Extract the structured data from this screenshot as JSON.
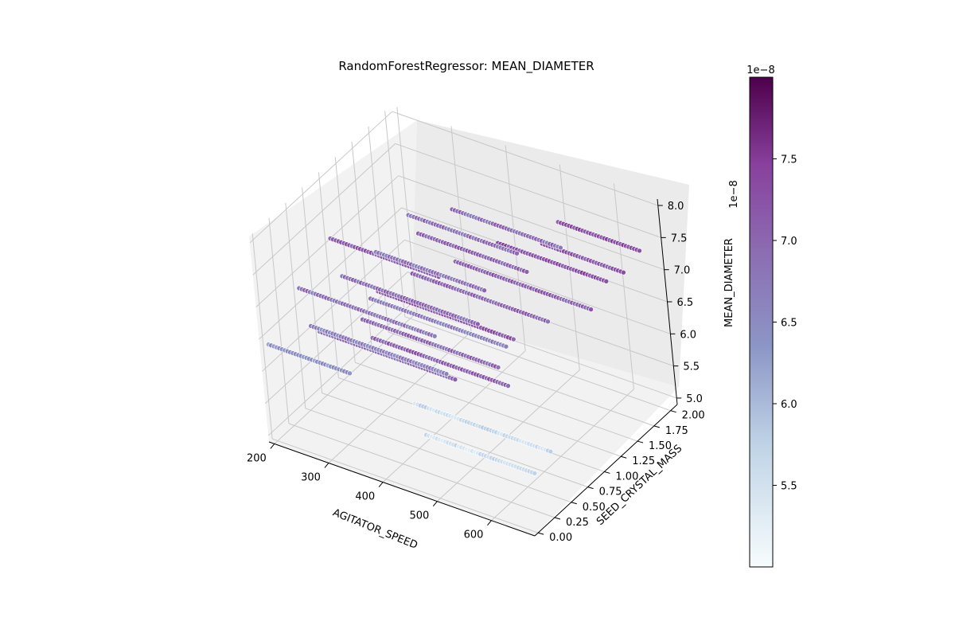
{
  "chart_data": {
    "type": "scatter",
    "projection": "3d",
    "title": "RandomForestRegressor: MEAN_DIAMETER",
    "xlabel": "AGITATOR_SPEED",
    "ylabel": "SEED_CRYSTAL_MASS",
    "zlabel": "MEAN_DIAMETER",
    "z_scale_label": "1e−8",
    "xlim": [
      190,
      680
    ],
    "ylim": [
      -0.05,
      2.1
    ],
    "zlim": [
      4.9,
      8.1
    ],
    "x_ticks": [
      "200",
      "300",
      "400",
      "500",
      "600"
    ],
    "y_ticks": [
      "0.00",
      "0.25",
      "0.50",
      "0.75",
      "1.00",
      "1.25",
      "1.50",
      "1.75",
      "2.00"
    ],
    "z_ticks": [
      "5.0",
      "5.5",
      "6.0",
      "6.5",
      "7.0",
      "7.5",
      "8.0"
    ],
    "grid": true,
    "colormap": "BuPu",
    "colorbar": {
      "label_scale": "1e−8",
      "range": [
        5.0,
        8.0
      ],
      "ticks": [
        "5.5",
        "6.0",
        "6.5",
        "7.0",
        "7.5"
      ]
    },
    "series": [
      {
        "y": 0.0,
        "x_start": 200,
        "x_end": 350,
        "z_base": 6.4
      },
      {
        "y": 0.0,
        "x_start": 300,
        "x_end": 550,
        "z_base": 6.9
      },
      {
        "y": 0.0,
        "x_start": 400,
        "x_end": 650,
        "z_base": 7.1
      },
      {
        "y": 0.25,
        "x_start": 250,
        "x_end": 500,
        "z_base": 6.6
      },
      {
        "y": 0.25,
        "x_start": 350,
        "x_end": 600,
        "z_base": 7.0
      },
      {
        "y": 0.25,
        "x_start": 450,
        "x_end": 650,
        "z_base": 5.5
      },
      {
        "y": 0.5,
        "x_start": 200,
        "x_end": 450,
        "z_base": 6.8
      },
      {
        "y": 0.5,
        "x_start": 350,
        "x_end": 600,
        "z_base": 7.2
      },
      {
        "y": 0.5,
        "x_start": 400,
        "x_end": 650,
        "z_base": 5.6
      },
      {
        "y": 0.75,
        "x_start": 250,
        "x_end": 500,
        "z_base": 6.9
      },
      {
        "y": 0.75,
        "x_start": 300,
        "x_end": 550,
        "z_base": 6.7
      },
      {
        "y": 1.0,
        "x_start": 200,
        "x_end": 400,
        "z_base": 7.1
      },
      {
        "y": 1.0,
        "x_start": 350,
        "x_end": 600,
        "z_base": 7.0
      },
      {
        "y": 1.25,
        "x_start": 250,
        "x_end": 450,
        "z_base": 6.8
      },
      {
        "y": 1.25,
        "x_start": 400,
        "x_end": 650,
        "z_base": 7.1
      },
      {
        "y": 1.5,
        "x_start": 300,
        "x_end": 500,
        "z_base": 7.0
      },
      {
        "y": 1.5,
        "x_start": 450,
        "x_end": 650,
        "z_base": 7.3
      },
      {
        "y": 1.75,
        "x_start": 250,
        "x_end": 450,
        "z_base": 6.9
      },
      {
        "y": 1.75,
        "x_start": 500,
        "x_end": 650,
        "z_base": 7.2
      },
      {
        "y": 2.0,
        "x_start": 300,
        "x_end": 500,
        "z_base": 6.9
      },
      {
        "y": 2.0,
        "x_start": 500,
        "x_end": 650,
        "z_base": 7.3
      }
    ]
  }
}
